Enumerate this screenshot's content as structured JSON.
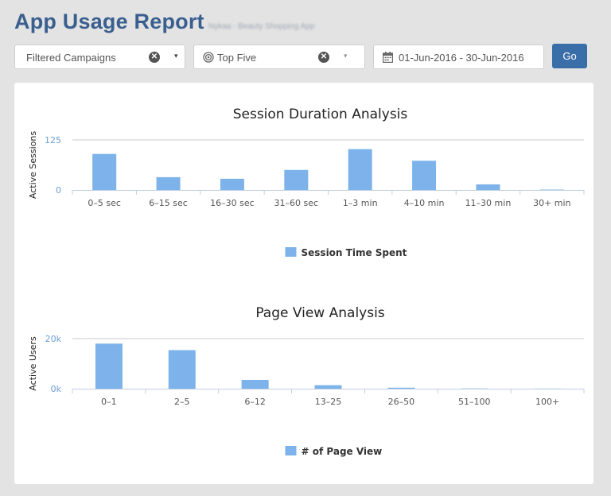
{
  "header": {
    "title": "App Usage Report",
    "subtitle": "Nykaa - Beauty Shopping App"
  },
  "filters": {
    "campaign": {
      "value": "Filtered Campaigns",
      "clear_icon": "clear-icon",
      "caret": "▾"
    },
    "top": {
      "value": "Top Five",
      "icon": "target-icon",
      "clear_icon": "clear-icon",
      "caret": "▾"
    },
    "date_range": {
      "value": "01-Jun-2016 - 30-Jun-2016",
      "icon": "calendar-icon"
    },
    "go_label": "Go"
  },
  "colors": {
    "bar": "#7db3ea",
    "title": "#3a5f8f",
    "axis_label": "#6a9fd5",
    "go": "#3a6ea8"
  },
  "chart_data": [
    {
      "type": "bar",
      "title": "Session Duration Analysis",
      "xlabel": "",
      "ylabel": "Active Sessions",
      "ylim": [
        0,
        125
      ],
      "yticks": [
        "0",
        "125"
      ],
      "categories": [
        "0–5 sec",
        "6–15 sec",
        "16–30 sec",
        "31–60 sec",
        "1–3 min",
        "4–10 min",
        "11–30 min",
        "30+ min"
      ],
      "series": [
        {
          "name": "Session Time Spent",
          "values": [
            90,
            32,
            28,
            50,
            102,
            73,
            14,
            1
          ]
        }
      ],
      "legend": "bottom-center",
      "grid": true
    },
    {
      "type": "bar",
      "title": "Page View Analysis",
      "xlabel": "",
      "ylabel": "Active Users",
      "ylim": [
        0,
        20000
      ],
      "yticks": [
        "0k",
        "20k"
      ],
      "categories": [
        "0–1",
        "2–5",
        "6–12",
        "13–25",
        "26–50",
        "51–100",
        "100+"
      ],
      "series": [
        {
          "name": "# of Page View",
          "values": [
            18000,
            15400,
            3500,
            1400,
            400,
            100,
            50
          ]
        }
      ],
      "legend": "bottom-center",
      "grid": true
    }
  ]
}
